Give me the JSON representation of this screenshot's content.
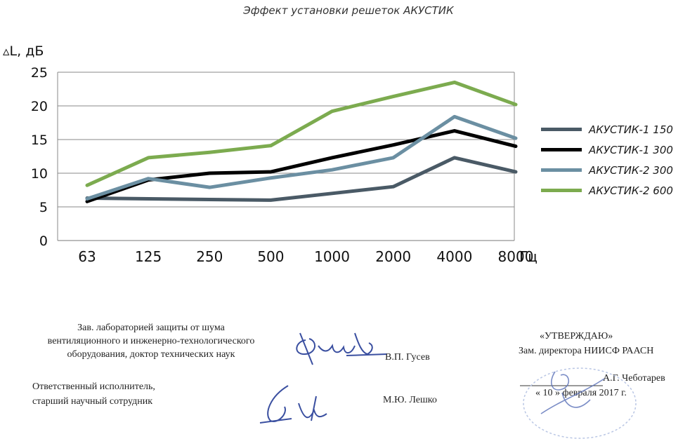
{
  "chart_data": {
    "type": "line",
    "title": "Эффект установки решеток АКУСТИК",
    "ylabel": "▵L, дБ",
    "xunit": "Гц",
    "categories": [
      "63",
      "125",
      "250",
      "500",
      "1000",
      "2000",
      "4000",
      "8000"
    ],
    "yticks": [
      "0",
      "5",
      "10",
      "15",
      "20",
      "25"
    ],
    "ylim": [
      0,
      25
    ],
    "grid": "horizontal",
    "legend_position": "right",
    "series": [
      {
        "name": "АКУСТИК-1 150",
        "color": "#4a5a66",
        "values": [
          6.3,
          6.2,
          6.1,
          6.0,
          7.0,
          8.0,
          12.3,
          10.2
        ]
      },
      {
        "name": "АКУСТИК-1 300",
        "color": "#000000",
        "values": [
          5.8,
          9.0,
          10.0,
          10.2,
          12.3,
          14.2,
          16.3,
          14.0
        ]
      },
      {
        "name": "АКУСТИК-2 300",
        "color": "#6b8fa2",
        "values": [
          6.2,
          9.2,
          7.9,
          9.3,
          10.5,
          12.3,
          18.4,
          15.2
        ]
      },
      {
        "name": "АКУСТИК-2 600",
        "color": "#7cab4f",
        "values": [
          8.2,
          12.3,
          13.1,
          14.1,
          19.2,
          21.4,
          23.5,
          20.2
        ]
      }
    ]
  },
  "document": {
    "lab_line1": "Зав. лабораторией защиты от шума",
    "lab_line2": "вентиляционного и инженерно-технологического",
    "lab_line3": "оборудования, доктор технических  наук",
    "lab_name": "В.П. Гусев",
    "exec_line1": "Ответственный исполнитель,",
    "exec_line2": "старший научный сотрудник",
    "exec_name": "М.Ю. Лешко",
    "approve_title": "«УТВЕРЖДАЮ»",
    "approve_role": "Зам. директора НИИСФ РААСН",
    "approve_name": "А.Г. Чеботарев",
    "approve_date": "« 10 » февраля 2017 г."
  }
}
